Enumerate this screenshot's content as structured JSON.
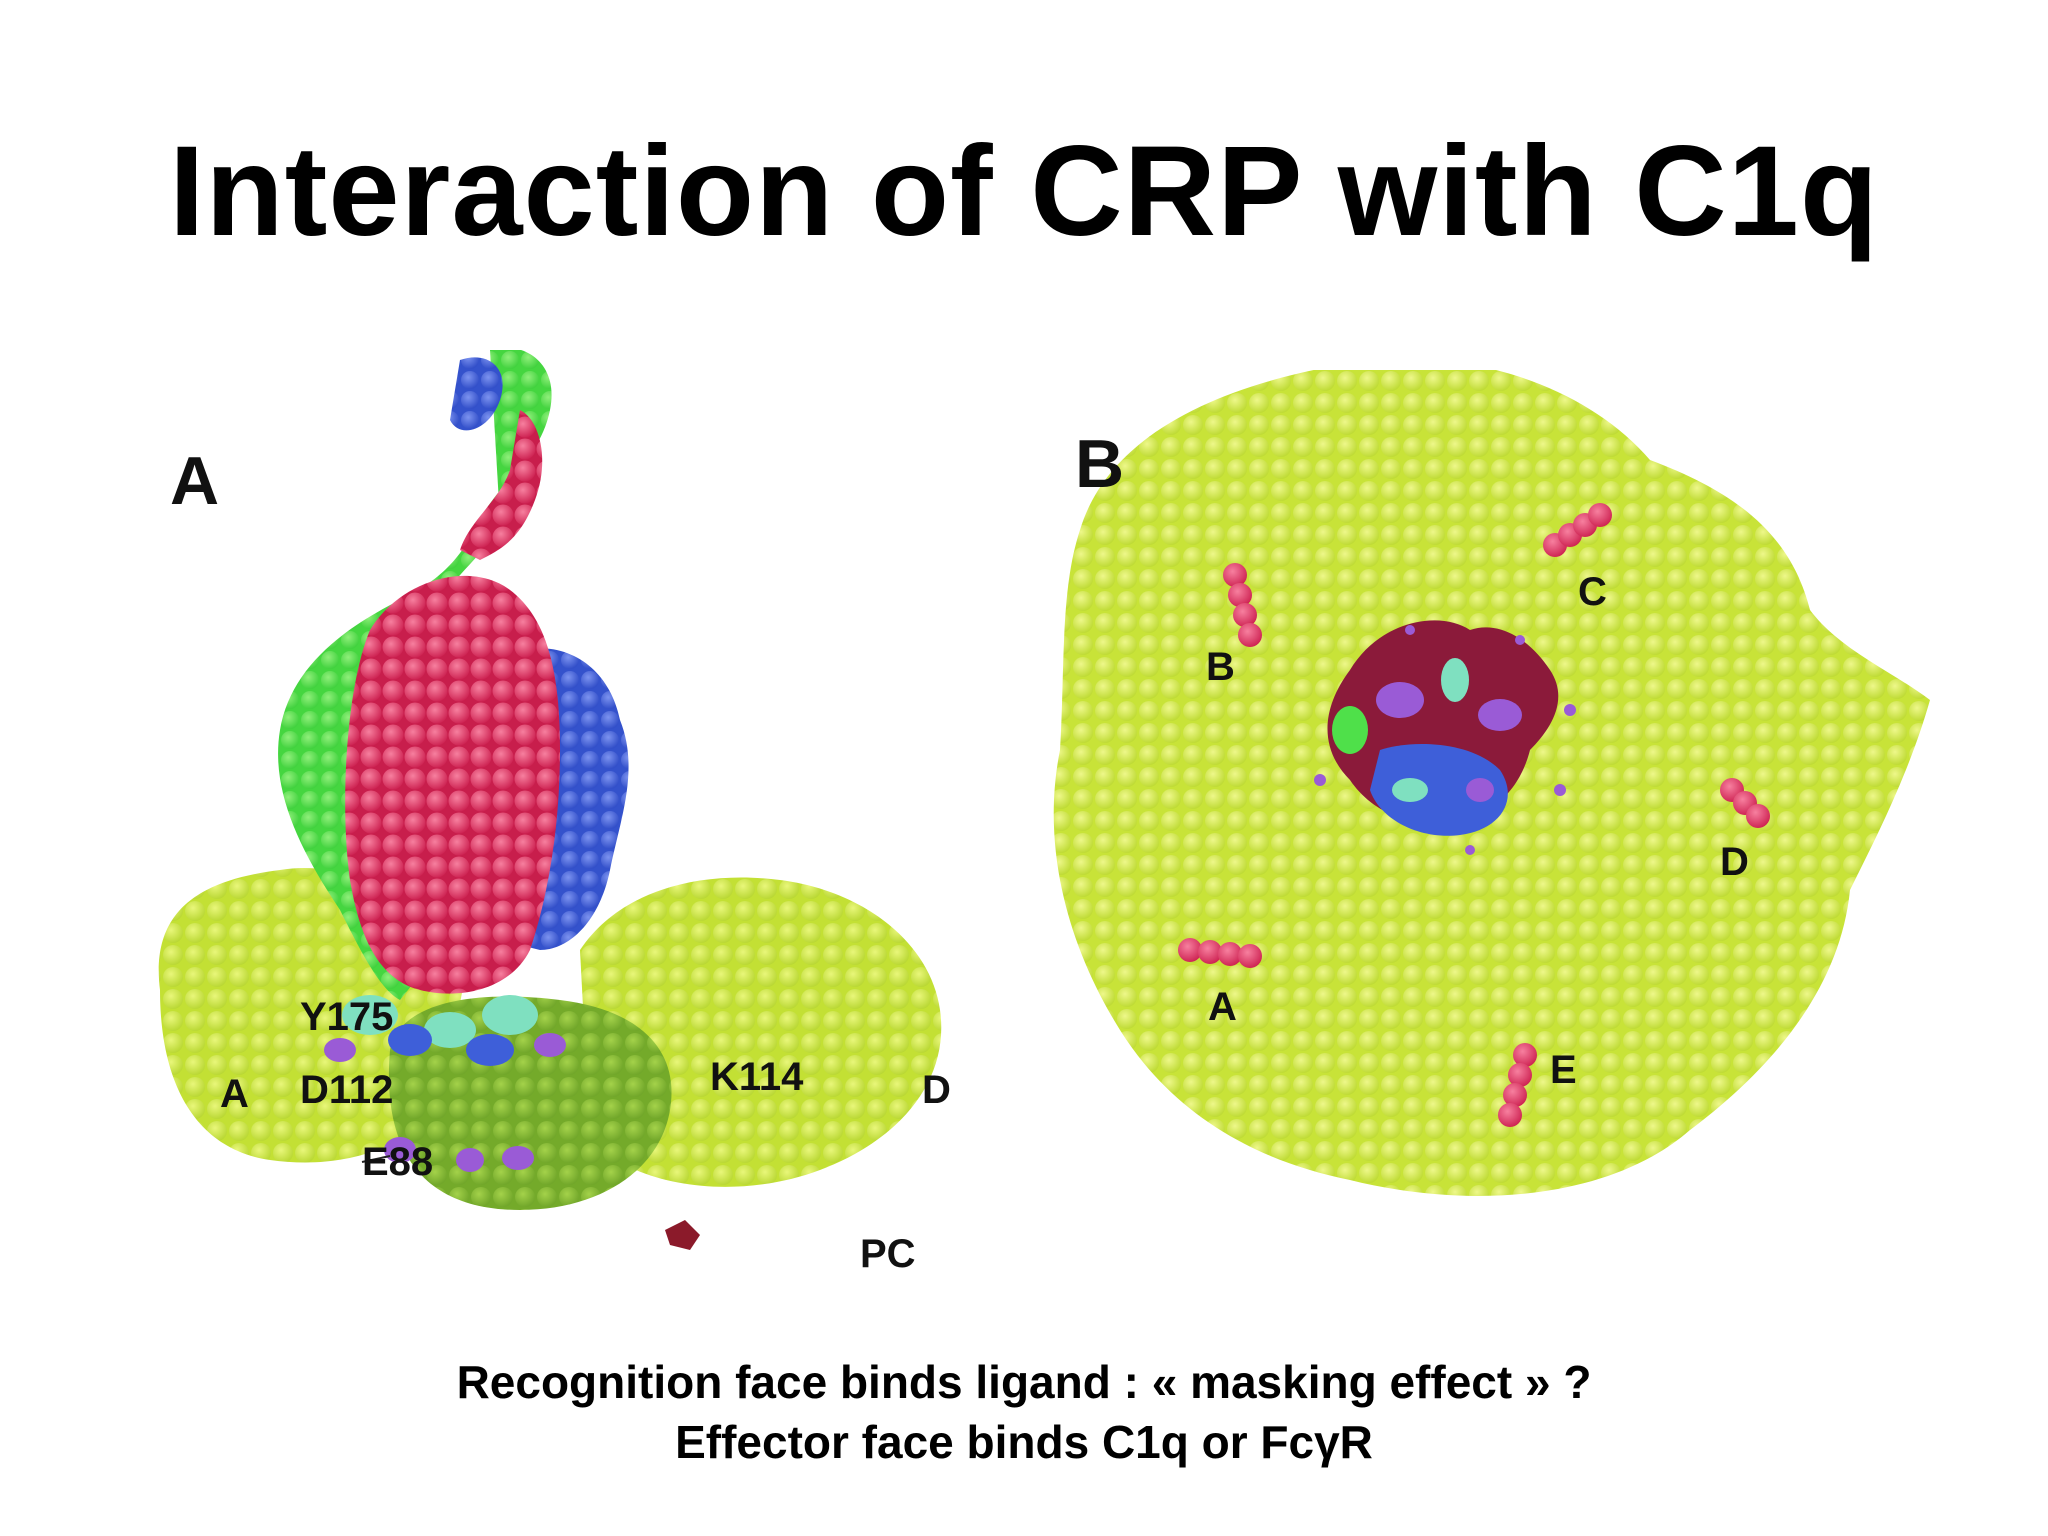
{
  "slide": {
    "title": "Interaction of CRP with C1q",
    "caption_line1": "Recognition face binds ligand : « masking effect » ?",
    "caption_line2": "Effector face binds C1q or FcγR"
  },
  "panel_a": {
    "letter": "A",
    "labels": {
      "y175": "Y175",
      "d112": "D112",
      "k114": "K114",
      "e88": "E88",
      "subunit_a": "A",
      "subunit_d": "D",
      "pc": "PC"
    }
  },
  "panel_b": {
    "letter": "B",
    "labels": {
      "a": "A",
      "b": "B",
      "c": "C",
      "d": "D",
      "e": "E"
    }
  },
  "colors": {
    "subunit_yellowgreen": "#c8e63a",
    "subunit_darkgreen": "#7fb52c",
    "c1q_green": "#4fe04a",
    "c1q_red": "#e2305f",
    "c1q_blue": "#3e5fd9",
    "residue_purple": "#9a5bd6",
    "residue_cyan": "#7fe0c0",
    "pc_darkred": "#8b1a2a"
  }
}
